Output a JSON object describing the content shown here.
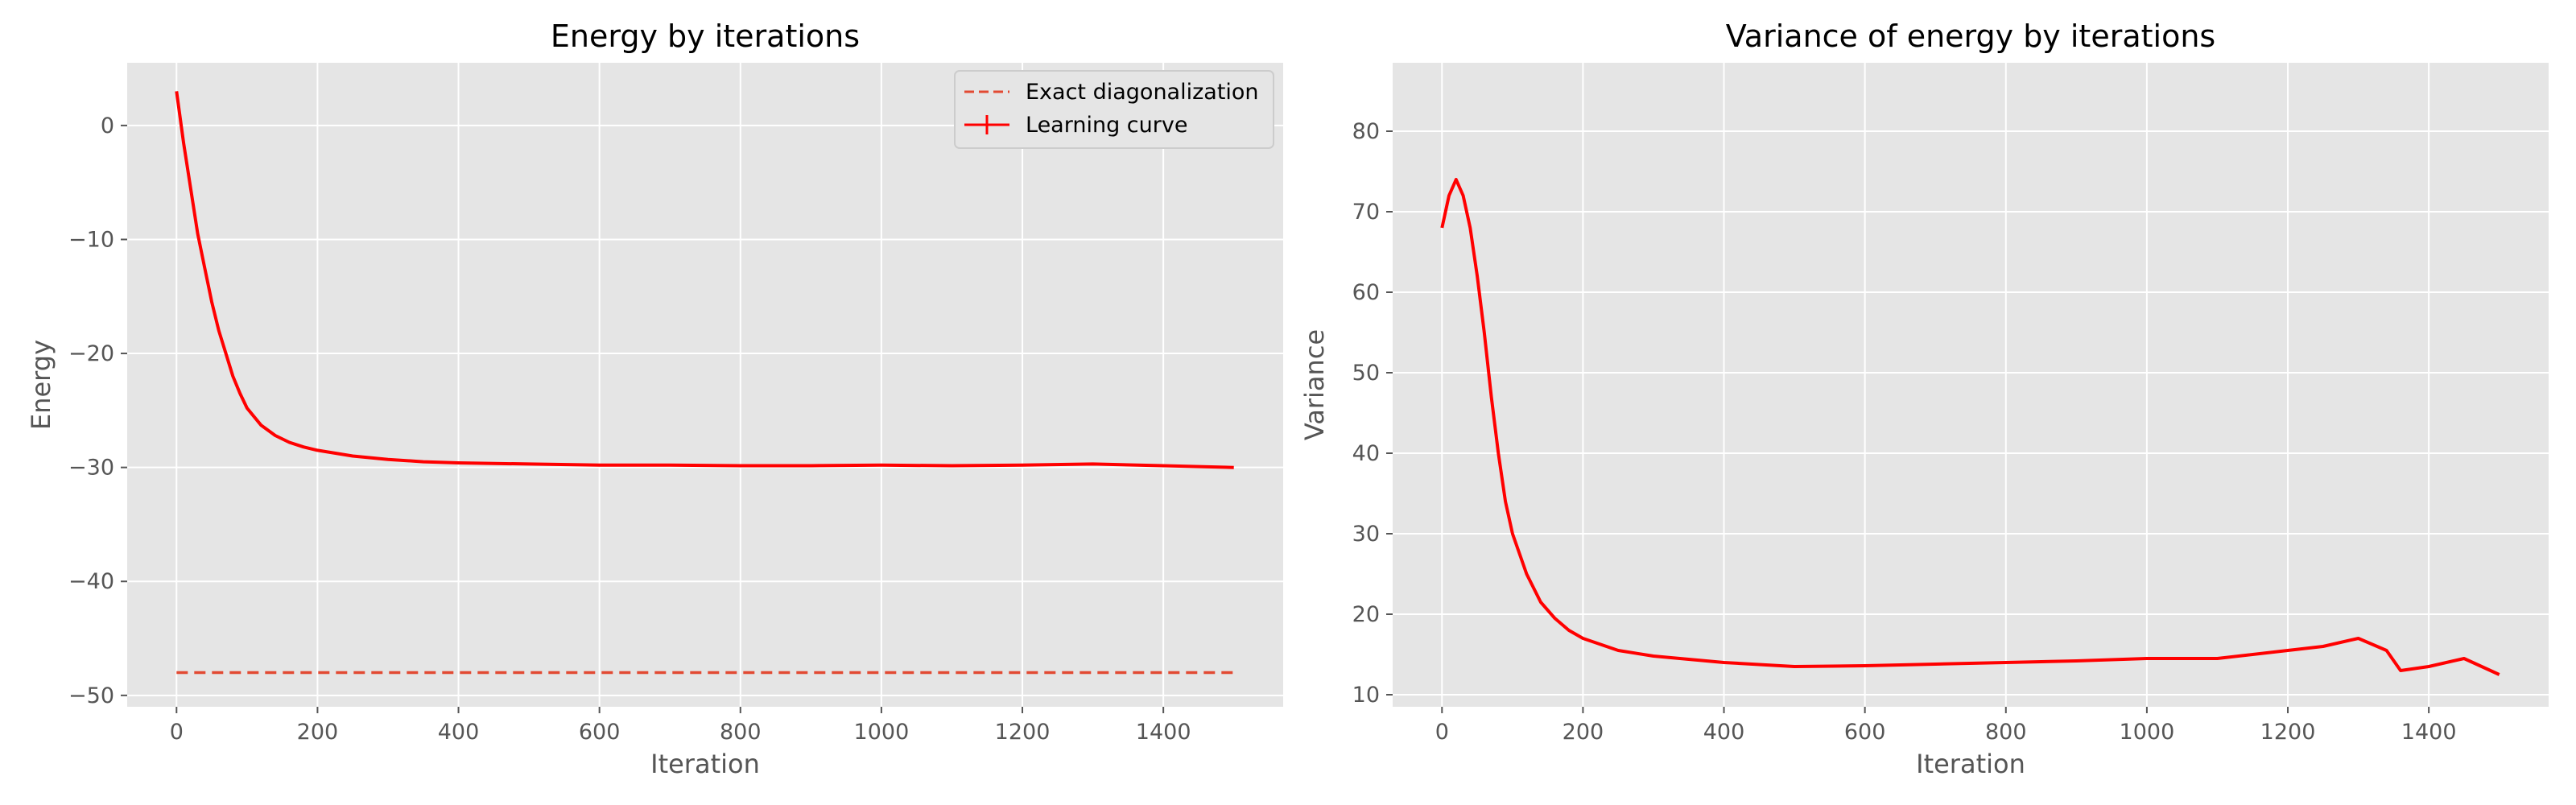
{
  "chart_data": [
    {
      "type": "line",
      "title": "Energy by iterations",
      "xlabel": "Iteration",
      "ylabel": "Energy",
      "xlim": [
        -70,
        1570
      ],
      "ylim": [
        -51,
        5.5
      ],
      "xticks": [
        0,
        200,
        400,
        600,
        800,
        1000,
        1200,
        1400
      ],
      "yticks": [
        0,
        -10,
        -20,
        -30,
        -40,
        -50
      ],
      "grid": true,
      "legend_position": "top-right",
      "series": [
        {
          "name": "Exact diagonalization",
          "style": "dashed",
          "color": "#e24a33",
          "x": [
            0,
            1500
          ],
          "y": [
            -48.0,
            -48.0
          ]
        },
        {
          "name": "Learning curve",
          "style": "solid",
          "color": "#ff0000",
          "x": [
            0,
            10,
            20,
            30,
            40,
            50,
            60,
            70,
            80,
            90,
            100,
            120,
            140,
            160,
            180,
            200,
            250,
            300,
            350,
            400,
            500,
            600,
            700,
            800,
            900,
            1000,
            1100,
            1200,
            1300,
            1400,
            1500
          ],
          "y": [
            3.0,
            -1.5,
            -5.5,
            -9.5,
            -12.5,
            -15.5,
            -18.0,
            -20.0,
            -22.0,
            -23.5,
            -24.8,
            -26.3,
            -27.2,
            -27.8,
            -28.2,
            -28.5,
            -29.0,
            -29.3,
            -29.5,
            -29.6,
            -29.7,
            -29.8,
            -29.8,
            -29.85,
            -29.85,
            -29.8,
            -29.85,
            -29.8,
            -29.7,
            -29.85,
            -30.0
          ]
        }
      ]
    },
    {
      "type": "line",
      "title": "Variance of energy by iterations",
      "xlabel": "Iteration",
      "ylabel": "Variance",
      "xlim": [
        -70,
        1570
      ],
      "ylim": [
        8.5,
        88.5
      ],
      "xticks": [
        0,
        200,
        400,
        600,
        800,
        1000,
        1200,
        1400
      ],
      "yticks": [
        10,
        20,
        30,
        40,
        50,
        60,
        70,
        80
      ],
      "grid": true,
      "series": [
        {
          "color": "#ff0000",
          "x": [
            0,
            10,
            20,
            30,
            40,
            50,
            60,
            70,
            80,
            90,
            100,
            120,
            140,
            160,
            180,
            200,
            250,
            300,
            400,
            500,
            600,
            700,
            800,
            900,
            1000,
            1100,
            1200,
            1250,
            1300,
            1340,
            1360,
            1400,
            1450,
            1500
          ],
          "y": [
            68,
            72,
            74,
            72,
            68,
            62,
            55,
            47,
            40,
            34,
            30,
            25,
            21.5,
            19.5,
            18,
            17,
            15.5,
            14.8,
            14,
            13.5,
            13.6,
            13.8,
            14,
            14.2,
            14.5,
            14.5,
            15.5,
            16,
            17,
            15.5,
            13,
            13.5,
            14.5,
            12.5
          ]
        }
      ]
    }
  ]
}
